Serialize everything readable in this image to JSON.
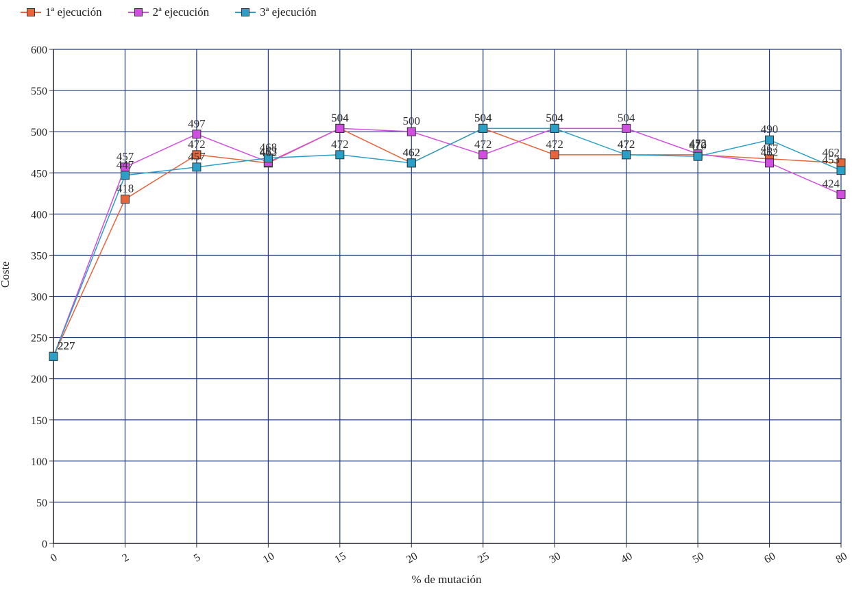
{
  "chart_data": {
    "type": "line",
    "title": "",
    "xlabel": "% de mutación",
    "ylabel": "Coste",
    "categories": [
      "0",
      "2",
      "5",
      "10",
      "15",
      "20",
      "25",
      "30",
      "40",
      "50",
      "60",
      "80"
    ],
    "ylim": [
      0,
      600
    ],
    "yticks": [
      0,
      50,
      100,
      150,
      200,
      250,
      300,
      350,
      400,
      450,
      500,
      550,
      600
    ],
    "grid": true,
    "legend_position": "top-left",
    "series": [
      {
        "name": "1ª ejecución",
        "color": "#e8643a",
        "values": [
          227,
          418,
          472,
          462,
          504,
          462,
          504,
          472,
          472,
          472,
          467,
          462
        ]
      },
      {
        "name": "2ª ejecución",
        "color": "#d24ee0",
        "values": [
          227,
          457,
          497,
          463,
          504,
          500,
          472,
          504,
          504,
          473,
          462,
          424
        ]
      },
      {
        "name": "3ª ejecución",
        "color": "#2aa0c8",
        "values": [
          227,
          447,
          457,
          468,
          472,
          462,
          504,
          504,
          472,
          470,
          490,
          453
        ]
      }
    ]
  }
}
